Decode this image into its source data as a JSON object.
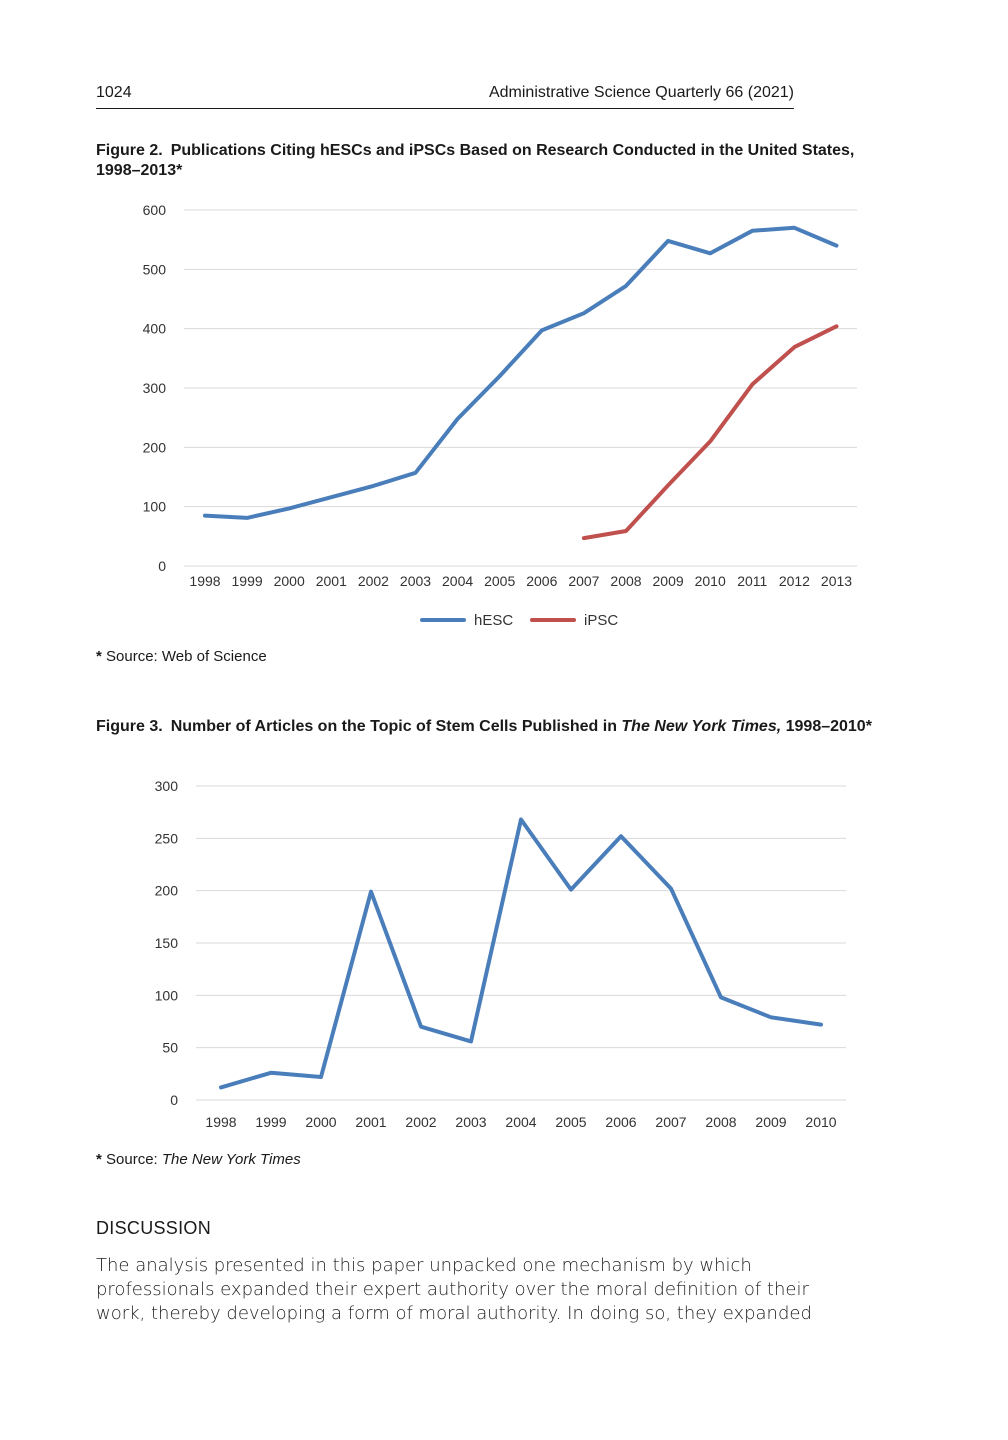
{
  "header": {
    "page_number": "1024",
    "journal": "Administrative Science Quarterly 66 (2021)"
  },
  "figure2": {
    "label": "Figure 2.",
    "caption": "Publications Citing hESCs and iPSCs Based on Research Conducted in the United States, 1998–2013*",
    "source_prefix": "Source: Web of Science",
    "colors": {
      "hESC": "#4a7ebb",
      "iPSC": "#c0504d"
    }
  },
  "figure3": {
    "label": "Figure 3.",
    "caption_pre": "Number of Articles on the Topic of Stem Cells Published in ",
    "caption_italic": "The New York Times,",
    "caption_post": " 1998–2010*",
    "source_prefix": "Source: ",
    "source_italic": "The New York Times",
    "colors": {
      "line": "#4a7ebb"
    }
  },
  "chart_data": [
    {
      "type": "line",
      "categories": [
        "1998",
        "1999",
        "2000",
        "2001",
        "2002",
        "2003",
        "2004",
        "2005",
        "2006",
        "2007",
        "2008",
        "2009",
        "2010",
        "2011",
        "2012",
        "2013"
      ],
      "series": [
        {
          "name": "hESC",
          "values": [
            85,
            81,
            97,
            116,
            135,
            157,
            248,
            320,
            397,
            426,
            472,
            548,
            527,
            565,
            570,
            540
          ]
        },
        {
          "name": "iPSC",
          "values": [
            null,
            null,
            null,
            null,
            null,
            null,
            null,
            null,
            null,
            47,
            59,
            136,
            210,
            306,
            369,
            404
          ]
        }
      ],
      "y_ticks": [
        0,
        100,
        200,
        300,
        400,
        500,
        600
      ],
      "ylim": [
        0,
        600
      ],
      "grid": true,
      "legend": "bottom-center"
    },
    {
      "type": "line",
      "categories": [
        "1998",
        "1999",
        "2000",
        "2001",
        "2002",
        "2003",
        "2004",
        "2005",
        "2006",
        "2007",
        "2008",
        "2009",
        "2010"
      ],
      "series": [
        {
          "values": [
            12,
            26,
            22,
            199,
            70,
            56,
            268,
            201,
            252,
            202,
            98,
            79,
            72
          ]
        }
      ],
      "y_ticks": [
        0,
        50,
        100,
        150,
        200,
        250,
        300
      ],
      "ylim": [
        0,
        300
      ],
      "grid": true
    }
  ],
  "discussion": {
    "title": "DISCUSSION",
    "lines": [
      "The analysis presented in this paper unpacked one mechanism by which",
      "professionals expanded their expert authority over the moral definition of their",
      "work, thereby developing a form of moral authority. In doing so, they expanded"
    ]
  }
}
